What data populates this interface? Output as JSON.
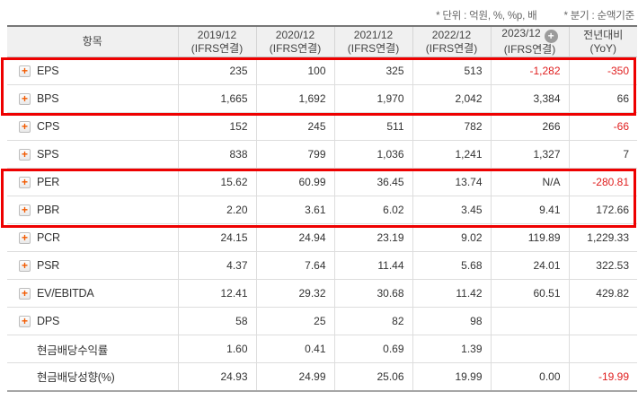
{
  "notes": {
    "unit": "* 단위 : 억원, %, %p, 배",
    "basis": "* 분기 : 순액기준"
  },
  "icons": {
    "expand_plus_glyph": "+",
    "add_column_plus_glyph": "+"
  },
  "colors": {
    "negative_text": "#e01e1e",
    "highlight_border": "#ee0000",
    "expand_plus": "#f25a00",
    "header_bg": "#f0f0f0"
  },
  "table": {
    "columns": [
      {
        "id": "label",
        "line1": "항목",
        "line2": ""
      },
      {
        "id": "y2019",
        "line1": "2019/12",
        "line2": "(IFRS연결)"
      },
      {
        "id": "y2020",
        "line1": "2020/12",
        "line2": "(IFRS연결)"
      },
      {
        "id": "y2021",
        "line1": "2021/12",
        "line2": "(IFRS연결)"
      },
      {
        "id": "y2022",
        "line1": "2022/12",
        "line2": "(IFRS연결)"
      },
      {
        "id": "y2023",
        "line1": "2023/12",
        "line2": "(IFRS연결)",
        "plus_badge": true
      },
      {
        "id": "yoy",
        "line1": "전년대비",
        "line2": "(YoY)"
      }
    ],
    "rows": [
      {
        "label": "EPS",
        "expandable": true,
        "values": [
          "235",
          "100",
          "325",
          "513",
          "-1,282",
          "-350"
        ]
      },
      {
        "label": "BPS",
        "expandable": true,
        "values": [
          "1,665",
          "1,692",
          "1,970",
          "2,042",
          "3,384",
          "66"
        ]
      },
      {
        "label": "CPS",
        "expandable": true,
        "values": [
          "152",
          "245",
          "511",
          "782",
          "266",
          "-66"
        ]
      },
      {
        "label": "SPS",
        "expandable": true,
        "values": [
          "838",
          "799",
          "1,036",
          "1,241",
          "1,327",
          "7"
        ]
      },
      {
        "label": "PER",
        "expandable": true,
        "values": [
          "15.62",
          "60.99",
          "36.45",
          "13.74",
          "N/A",
          "-280.81"
        ]
      },
      {
        "label": "PBR",
        "expandable": true,
        "values": [
          "2.20",
          "3.61",
          "6.02",
          "3.45",
          "9.41",
          "172.66"
        ]
      },
      {
        "label": "PCR",
        "expandable": true,
        "values": [
          "24.15",
          "24.94",
          "23.19",
          "9.02",
          "119.89",
          "1,229.33"
        ]
      },
      {
        "label": "PSR",
        "expandable": true,
        "values": [
          "4.37",
          "7.64",
          "11.44",
          "5.68",
          "24.01",
          "322.53"
        ]
      },
      {
        "label": "EV/EBITDA",
        "expandable": true,
        "values": [
          "12.41",
          "29.32",
          "30.68",
          "11.42",
          "60.51",
          "429.82"
        ]
      },
      {
        "label": "DPS",
        "expandable": true,
        "values": [
          "58",
          "25",
          "82",
          "98",
          "",
          ""
        ]
      },
      {
        "label": "현금배당수익률",
        "expandable": false,
        "values": [
          "1.60",
          "0.41",
          "0.69",
          "1.39",
          "",
          ""
        ]
      },
      {
        "label": "현금배당성향(%)",
        "expandable": false,
        "values": [
          "24.93",
          "24.99",
          "25.06",
          "19.99",
          "0.00",
          "-19.99"
        ]
      }
    ],
    "highlighted_row_groups": [
      [
        "EPS",
        "BPS"
      ],
      [
        "PER",
        "PBR"
      ]
    ]
  }
}
